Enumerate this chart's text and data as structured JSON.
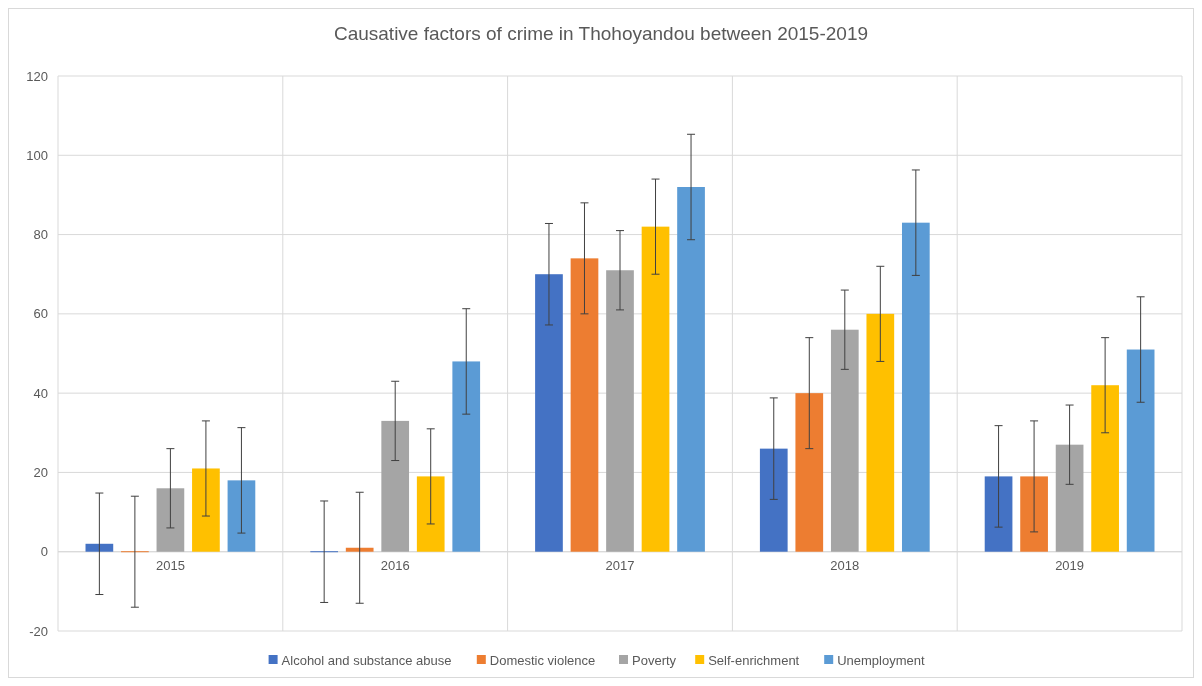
{
  "chart_data": {
    "type": "bar",
    "title": "Causative factors of crime in Thohoyandou between 2015-2019",
    "categories": [
      "2015",
      "2016",
      "2017",
      "2018",
      "2019"
    ],
    "series": [
      {
        "name": "Alcohol and substance abuse",
        "color": "#4472c4",
        "values": [
          2,
          0,
          70,
          26,
          19
        ],
        "errors": [
          12.8,
          12.8,
          12.8,
          12.8,
          12.8
        ]
      },
      {
        "name": "Domestic violence",
        "color": "#ed7d31",
        "values": [
          0,
          1,
          74,
          40,
          19
        ],
        "errors": [
          14,
          14,
          14,
          14,
          14
        ]
      },
      {
        "name": "Poverty",
        "color": "#a5a5a5",
        "values": [
          16,
          33,
          71,
          56,
          27
        ],
        "errors": [
          10,
          10,
          10,
          10,
          10
        ]
      },
      {
        "name": "Self-enrichment",
        "color": "#ffc000",
        "values": [
          21,
          19,
          82,
          60,
          42
        ],
        "errors": [
          12,
          12,
          12,
          12,
          12
        ]
      },
      {
        "name": "Unemployment",
        "color": "#5b9bd5",
        "values": [
          18,
          48,
          92,
          83,
          51
        ],
        "errors": [
          13.3,
          13.3,
          13.3,
          13.3,
          13.3
        ]
      }
    ],
    "ylim": [
      -20,
      120
    ],
    "yticks": [
      -20,
      0,
      20,
      40,
      60,
      80,
      100,
      120
    ],
    "grid": true,
    "legend": "bottom"
  }
}
